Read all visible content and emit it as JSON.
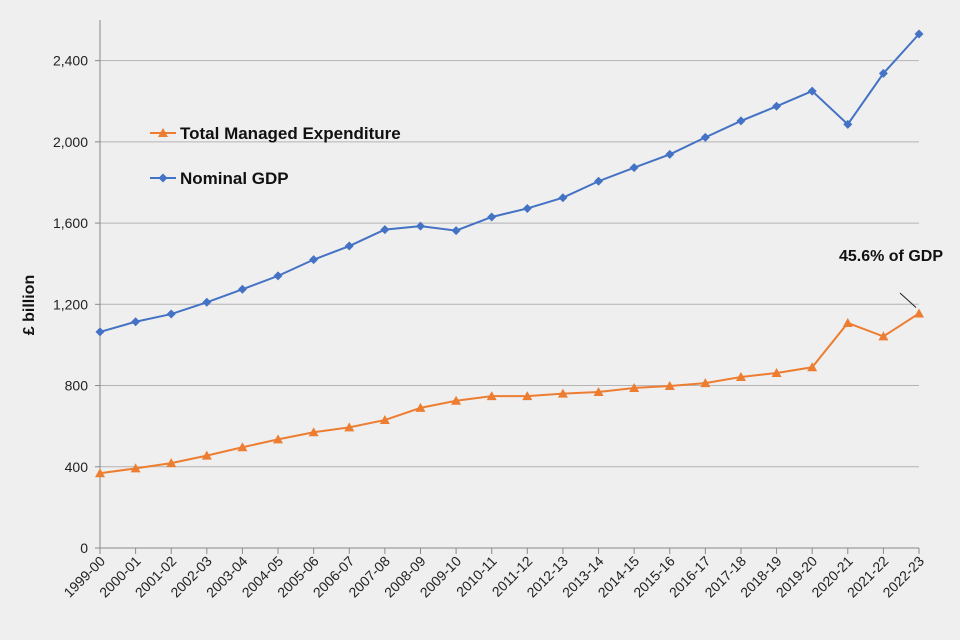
{
  "chart_data": {
    "type": "line",
    "title": "",
    "xlabel": "",
    "ylabel": "£ billion",
    "ylim": [
      0,
      2600
    ],
    "yticks": [
      0,
      400,
      800,
      1200,
      1600,
      2000,
      2400
    ],
    "ytick_labels": [
      "0",
      "400",
      "800",
      "1,200",
      "1,600",
      "2,000",
      "2,400"
    ],
    "grid": "horizontal",
    "legend_position": "upper-left",
    "categories": [
      "1999-00",
      "2000-01",
      "2001-02",
      "2002-03",
      "2003-04",
      "2004-05",
      "2005-06",
      "2006-07",
      "2007-08",
      "2008-09",
      "2009-10",
      "2010-11",
      "2011-12",
      "2012-13",
      "2013-14",
      "2014-15",
      "2015-16",
      "2016-17",
      "2017-18",
      "2018-19",
      "2019-20",
      "2020-21",
      "2021-22",
      "2022-23"
    ],
    "series": [
      {
        "name": "Total Managed Expenditure",
        "color": "#ed7d31",
        "marker": "triangle",
        "values": [
          368,
          392,
          418,
          455,
          496,
          535,
          570,
          594,
          630,
          690,
          725,
          748,
          748,
          760,
          768,
          788,
          798,
          812,
          842,
          862,
          890,
          1108,
          1042,
          1155
        ]
      },
      {
        "name": "Nominal GDP",
        "color": "#4472c4",
        "marker": "diamond",
        "values": [
          1064,
          1114,
          1152,
          1210,
          1274,
          1340,
          1420,
          1487,
          1568,
          1585,
          1563,
          1630,
          1672,
          1725,
          1806,
          1873,
          1938,
          2022,
          2103,
          2175,
          2250,
          2086,
          2337,
          2531
        ]
      }
    ],
    "annotations": [
      {
        "text": "45.6% of GDP",
        "series": "Total Managed Expenditure",
        "category": "2022-23"
      }
    ]
  }
}
